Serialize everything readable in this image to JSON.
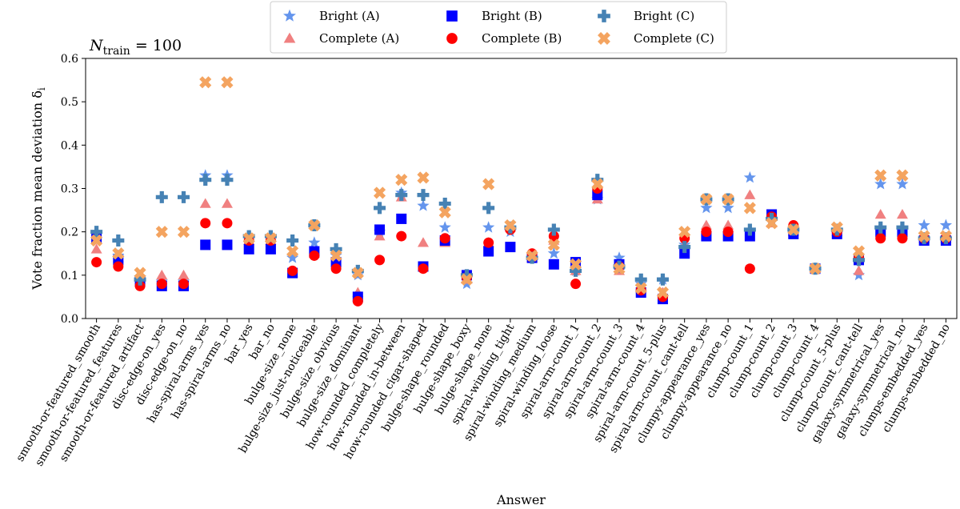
{
  "chart_data": {
    "type": "scatter",
    "title": "",
    "annotation": {
      "main": "N",
      "sub": "train",
      "rest": " = 100"
    },
    "xlabel": "Answer",
    "ylabel": "Vote fraction mean deviation δ",
    "ylabel_sub": "i",
    "ylim": [
      0.0,
      0.6
    ],
    "yticks": [
      "0.0",
      "0.1",
      "0.2",
      "0.3",
      "0.4",
      "0.5",
      "0.6"
    ],
    "legend_position": "top-center",
    "categories": [
      "smooth-or-featured_smooth",
      "smooth-or-featured_features",
      "smooth-or-featured_artifact",
      "disc-edge-on_yes",
      "disc-edge-on_no",
      "has-spiral-arms_yes",
      "has-spiral-arms_no",
      "bar_yes",
      "bar_no",
      "bulge-size_none",
      "bulge-size_just-noticeable",
      "bulge-size_obvious",
      "bulge-size_dominant",
      "how-rounded_completely",
      "how-rounded_in-between",
      "how-rounded_cigar-shaped",
      "bulge-shape_rounded",
      "bulge-shape_boxy",
      "bulge-shape_none",
      "spiral-winding_tight",
      "spiral-winding_medium",
      "spiral-winding_loose",
      "spiral-arm-count_1",
      "spiral-arm-count_2",
      "spiral-arm-count_3",
      "spiral-arm-count_4",
      "spiral-arm-count_5-plus",
      "spiral-arm-count_cant-tell",
      "clumpy-appearance_yes",
      "clumpy-appearance_no",
      "clump-count_1",
      "clump-count_2",
      "clump-count_3",
      "clump-count_4",
      "clump-count_5-plus",
      "clump-count_cant-tell",
      "galaxy-symmetrical_yes",
      "galaxy-symmetrical_no",
      "clumps-embedded_yes",
      "clumps-embedded_no"
    ],
    "series": [
      {
        "name": "Bright (A)",
        "marker": "star",
        "color": "#6495ed",
        "values": [
          0.195,
          0.145,
          0.095,
          0.085,
          0.085,
          0.33,
          0.33,
          0.19,
          0.19,
          0.14,
          0.175,
          0.145,
          0.1,
          0.2,
          0.29,
          0.26,
          0.21,
          0.08,
          0.21,
          0.2,
          0.14,
          0.15,
          0.11,
          0.275,
          0.14,
          0.08,
          0.09,
          0.17,
          0.255,
          0.255,
          0.325,
          0.23,
          0.205,
          0.115,
          0.2,
          0.1,
          0.31,
          0.31,
          0.215,
          0.215
        ]
      },
      {
        "name": "Complete (A)",
        "marker": "triangle",
        "color": "#f08080",
        "values": [
          0.16,
          0.14,
          0.1,
          0.1,
          0.1,
          0.265,
          0.265,
          0.18,
          0.18,
          0.105,
          0.15,
          0.145,
          0.06,
          0.19,
          0.28,
          0.175,
          0.175,
          0.09,
          0.175,
          0.21,
          0.14,
          0.18,
          0.11,
          0.275,
          0.11,
          0.07,
          0.06,
          0.17,
          0.215,
          0.215,
          0.285,
          0.22,
          0.2,
          0.115,
          0.2,
          0.11,
          0.24,
          0.24,
          0.185,
          0.185
        ]
      },
      {
        "name": "Bright (B)",
        "marker": "square",
        "color": "#0000ff",
        "values": [
          0.185,
          0.135,
          0.085,
          0.075,
          0.075,
          0.17,
          0.17,
          0.16,
          0.16,
          0.105,
          0.155,
          0.13,
          0.05,
          0.205,
          0.23,
          0.12,
          0.18,
          0.1,
          0.155,
          0.165,
          0.14,
          0.125,
          0.13,
          0.285,
          0.125,
          0.06,
          0.045,
          0.15,
          0.19,
          0.19,
          0.19,
          0.24,
          0.195,
          0.115,
          0.195,
          0.135,
          0.2,
          0.2,
          0.18,
          0.18
        ]
      },
      {
        "name": "Complete (B)",
        "marker": "circle",
        "color": "#ff0000",
        "values": [
          0.13,
          0.12,
          0.075,
          0.08,
          0.08,
          0.22,
          0.22,
          0.18,
          0.18,
          0.11,
          0.145,
          0.115,
          0.04,
          0.135,
          0.19,
          0.115,
          0.185,
          0.095,
          0.175,
          0.205,
          0.15,
          0.19,
          0.08,
          0.3,
          0.12,
          0.065,
          0.05,
          0.185,
          0.2,
          0.2,
          0.115,
          0.235,
          0.215,
          0.115,
          0.2,
          0.14,
          0.185,
          0.185,
          0.185,
          0.185
        ]
      },
      {
        "name": "Bright (C)",
        "marker": "plus",
        "color": "#4682b4",
        "values": [
          0.2,
          0.18,
          0.09,
          0.28,
          0.28,
          0.32,
          0.32,
          0.19,
          0.19,
          0.18,
          0.215,
          0.16,
          0.11,
          0.255,
          0.285,
          0.285,
          0.265,
          0.1,
          0.255,
          0.21,
          0.14,
          0.205,
          0.11,
          0.32,
          0.12,
          0.09,
          0.09,
          0.165,
          0.275,
          0.275,
          0.205,
          0.23,
          0.205,
          0.115,
          0.205,
          0.135,
          0.21,
          0.21,
          0.185,
          0.185
        ]
      },
      {
        "name": "Complete (C)",
        "marker": "x",
        "color": "#f4a460",
        "values": [
          0.18,
          0.15,
          0.105,
          0.2,
          0.2,
          0.545,
          0.545,
          0.185,
          0.185,
          0.155,
          0.215,
          0.145,
          0.105,
          0.29,
          0.32,
          0.325,
          0.245,
          0.09,
          0.31,
          0.215,
          0.145,
          0.17,
          0.125,
          0.31,
          0.115,
          0.07,
          0.06,
          0.2,
          0.275,
          0.275,
          0.255,
          0.22,
          0.205,
          0.115,
          0.21,
          0.155,
          0.33,
          0.33,
          0.19,
          0.19
        ]
      }
    ]
  }
}
